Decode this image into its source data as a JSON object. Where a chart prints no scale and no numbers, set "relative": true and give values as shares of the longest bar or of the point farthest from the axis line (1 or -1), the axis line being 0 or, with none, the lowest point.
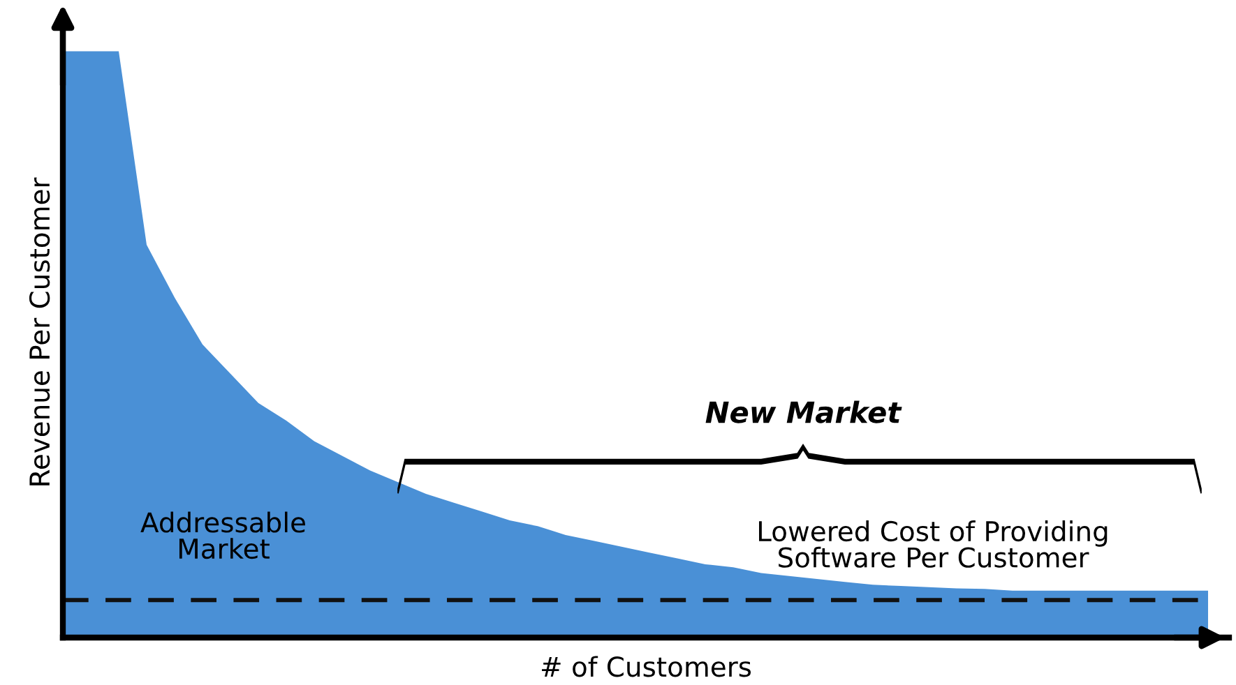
{
  "chart_data": {
    "type": "area",
    "relative": true,
    "xlabel": "# of Customers",
    "ylabel": "Revenue Per Customer",
    "color": "#4a90d6",
    "categories": [
      null,
      null,
      null,
      null,
      null,
      null,
      null,
      null,
      null,
      null,
      null,
      null,
      null,
      null,
      null,
      null,
      null,
      null,
      null,
      null,
      null,
      null,
      null,
      null,
      null,
      null,
      null,
      null,
      null,
      null,
      null,
      null,
      null,
      null,
      null,
      null,
      null,
      null,
      null,
      null,
      null,
      null
    ],
    "values": [
      1,
      1,
      1,
      0.67,
      0.58,
      0.5,
      0.45,
      0.4,
      0.37,
      0.335,
      0.31,
      0.285,
      0.265,
      0.245,
      0.23,
      0.215,
      0.2,
      0.19,
      0.175,
      0.165,
      0.155,
      0.145,
      0.135,
      0.125,
      0.12,
      0.11,
      0.105,
      0.1,
      0.095,
      0.09,
      0.088,
      0.086,
      0.084,
      0.083,
      0.08,
      0.08,
      0.08,
      0.08,
      0.08,
      0.08,
      0.08,
      0.08
    ],
    "ref_lines": [
      {
        "axis": "y",
        "value": 0.064,
        "line_style": "dashed",
        "color": "#111111"
      }
    ],
    "annotations": [
      "New Market",
      "Addressable Market",
      "Lowered Cost of Providing Software Per Customer"
    ]
  }
}
